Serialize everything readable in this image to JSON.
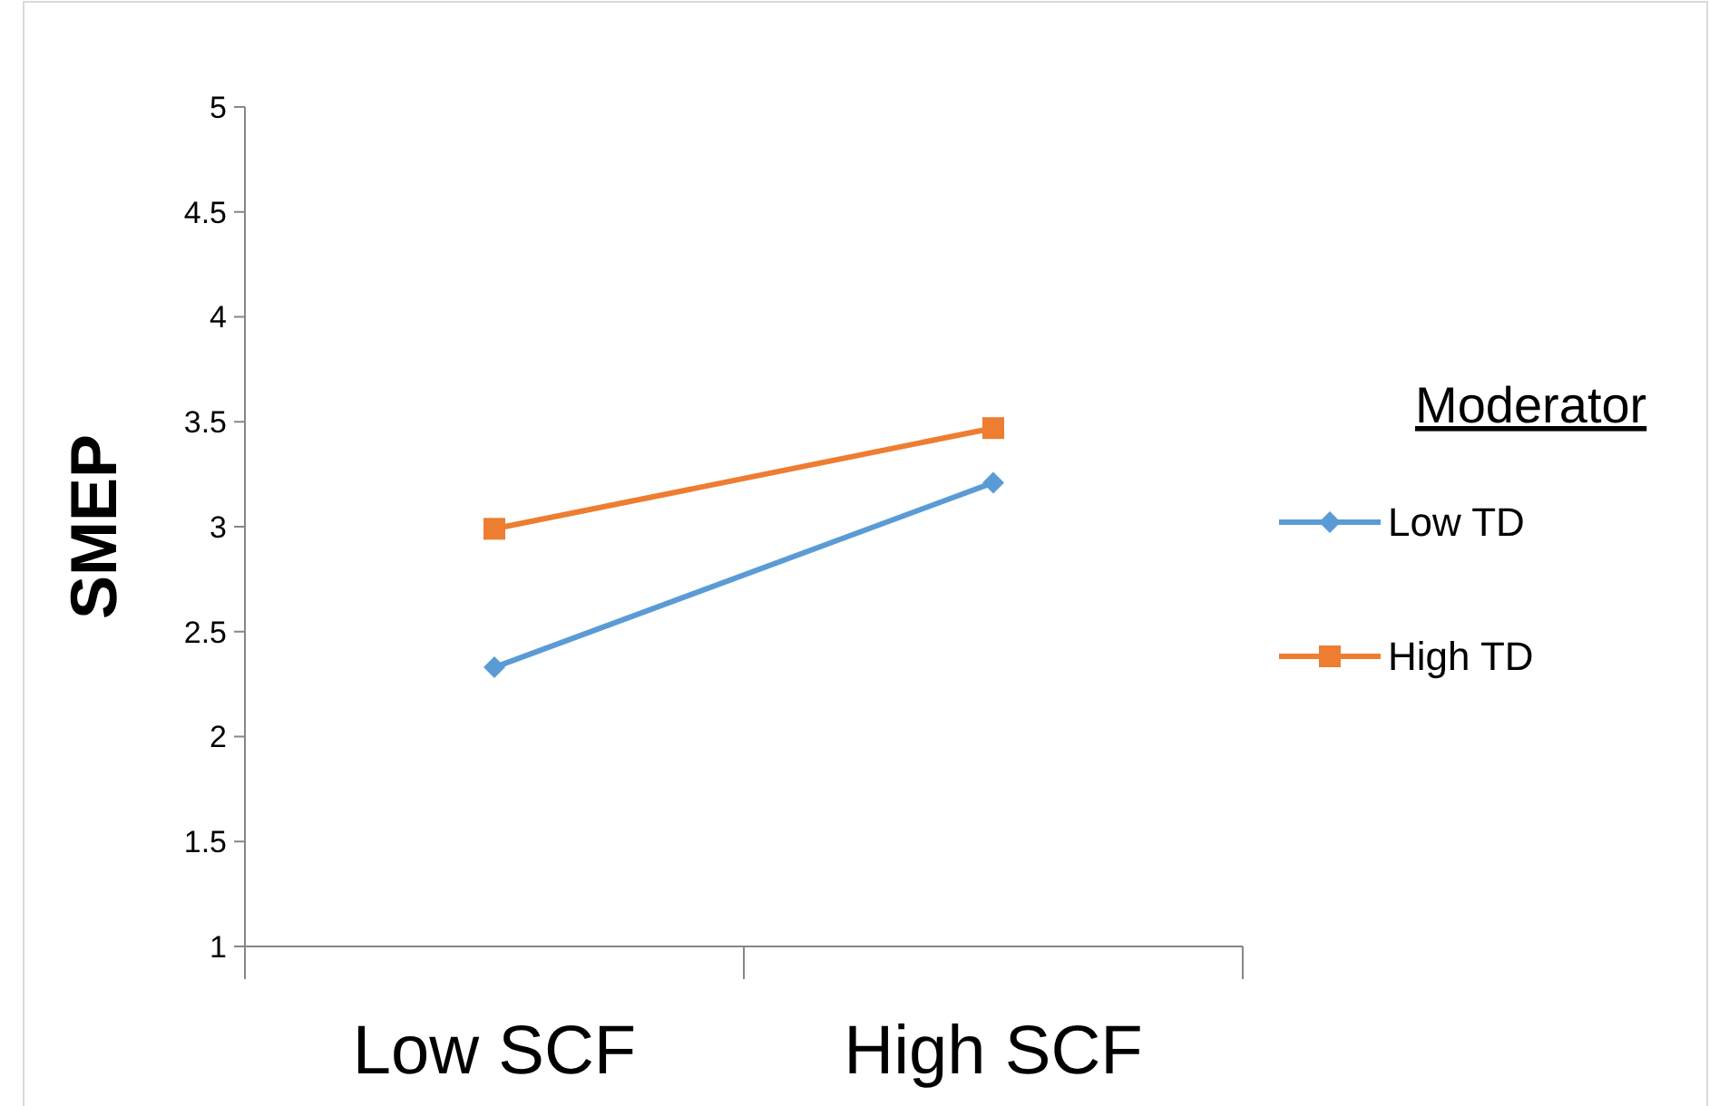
{
  "chart_data": {
    "type": "line",
    "ylabel": "SMEP",
    "legend_title": "Moderator",
    "categories": [
      "Low SCF",
      "High SCF"
    ],
    "series": [
      {
        "name": "Low TD",
        "color": "#5b9bd5",
        "values": [
          2.33,
          3.21
        ],
        "marker": "diamond"
      },
      {
        "name": "High TD",
        "color": "#ed7d31",
        "values": [
          2.99,
          3.47
        ],
        "marker": "square"
      }
    ],
    "ylim": [
      1,
      5
    ],
    "yticks": [
      1,
      1.5,
      2,
      2.5,
      3,
      3.5,
      4,
      4.5,
      5
    ],
    "grid": false,
    "legend": "right"
  }
}
